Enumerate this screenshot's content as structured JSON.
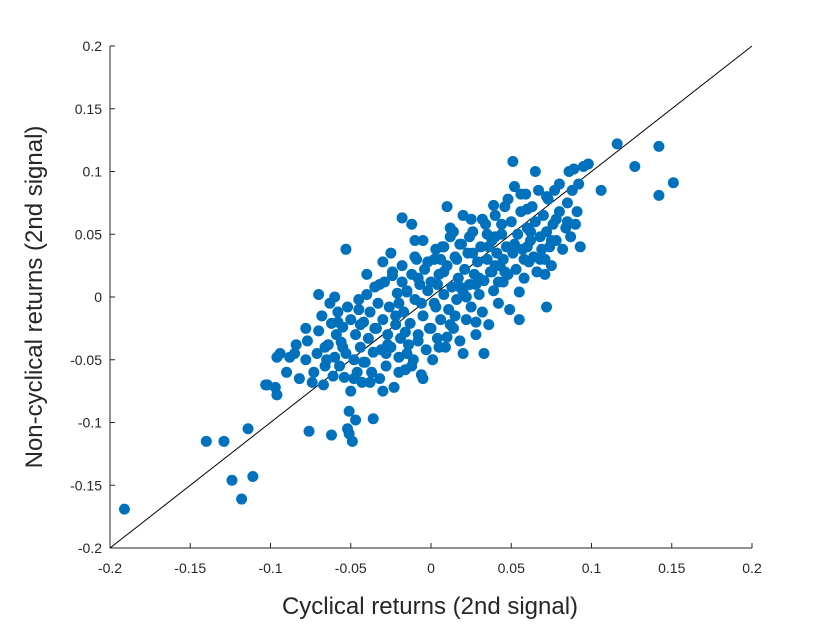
{
  "chart_data": {
    "type": "scatter",
    "xlabel": "Cyclical returns (2nd signal)",
    "ylabel": "Non-cyclical returns (2nd signal)",
    "xlim": [
      -0.2,
      0.2
    ],
    "ylim": [
      -0.2,
      0.2
    ],
    "xticks": [
      "-0.2",
      "-0.15",
      "-0.1",
      "-0.05",
      "0",
      "0.05",
      "0.1",
      "0.15",
      "0.2"
    ],
    "yticks": [
      "-0.2",
      "-0.15",
      "-0.1",
      "-0.05",
      "0",
      "0.05",
      "0.1",
      "0.15",
      "0.2"
    ],
    "reference_line": {
      "from": [
        -0.2,
        -0.2
      ],
      "to": [
        0.2,
        0.2
      ]
    },
    "marker_color": "#0072bd",
    "grid": false,
    "points": [
      [
        -0.191,
        -0.169
      ],
      [
        -0.14,
        -0.115
      ],
      [
        -0.129,
        -0.115
      ],
      [
        -0.124,
        -0.146
      ],
      [
        -0.118,
        -0.161
      ],
      [
        -0.114,
        -0.105
      ],
      [
        -0.111,
        -0.143
      ],
      [
        -0.103,
        -0.07
      ],
      [
        -0.097,
        -0.072
      ],
      [
        -0.096,
        -0.078
      ],
      [
        -0.096,
        -0.048
      ],
      [
        -0.094,
        -0.045
      ],
      [
        -0.088,
        -0.048
      ],
      [
        -0.084,
        -0.038
      ],
      [
        -0.082,
        -0.065
      ],
      [
        -0.078,
        -0.05
      ],
      [
        -0.077,
        -0.035
      ],
      [
        -0.076,
        -0.107
      ],
      [
        -0.073,
        -0.06
      ],
      [
        -0.071,
        -0.045
      ],
      [
        -0.07,
        -0.027
      ],
      [
        -0.068,
        -0.015
      ],
      [
        -0.067,
        -0.07
      ],
      [
        -0.066,
        -0.055
      ],
      [
        -0.064,
        -0.038
      ],
      [
        -0.063,
        -0.005
      ],
      [
        -0.062,
        -0.021
      ],
      [
        -0.061,
        -0.063
      ],
      [
        -0.06,
        -0.048
      ],
      [
        -0.059,
        -0.03
      ],
      [
        -0.058,
        -0.012
      ],
      [
        -0.057,
        -0.055
      ],
      [
        -0.056,
        -0.036
      ],
      [
        -0.055,
        -0.024
      ],
      [
        -0.054,
        -0.064
      ],
      [
        -0.053,
        -0.045
      ],
      [
        -0.052,
        -0.008
      ],
      [
        -0.052,
        -0.105
      ],
      [
        -0.051,
        -0.109
      ],
      [
        -0.051,
        -0.091
      ],
      [
        -0.05,
        -0.018
      ],
      [
        -0.049,
        -0.115
      ],
      [
        -0.048,
        -0.05
      ],
      [
        -0.047,
        -0.03
      ],
      [
        -0.046,
        -0.06
      ],
      [
        -0.045,
        -0.002
      ],
      [
        -0.044,
        -0.04
      ],
      [
        -0.043,
        -0.068
      ],
      [
        -0.042,
        -0.02
      ],
      [
        -0.041,
        -0.052
      ],
      [
        -0.04,
        0.002
      ],
      [
        -0.039,
        -0.033
      ],
      [
        -0.038,
        -0.012
      ],
      [
        -0.037,
        -0.06
      ],
      [
        -0.036,
        -0.044
      ],
      [
        -0.035,
        0.008
      ],
      [
        -0.034,
        -0.025
      ],
      [
        -0.033,
        -0.005
      ],
      [
        -0.032,
        -0.065
      ],
      [
        -0.031,
        -0.042
      ],
      [
        -0.03,
        -0.018
      ],
      [
        -0.029,
        0.012
      ],
      [
        -0.028,
        -0.055
      ],
      [
        -0.027,
        -0.03
      ],
      [
        -0.026,
        -0.008
      ],
      [
        -0.025,
        -0.04
      ],
      [
        -0.024,
        0.017
      ],
      [
        -0.023,
        -0.072
      ],
      [
        -0.022,
        -0.022
      ],
      [
        -0.021,
        0.003
      ],
      [
        -0.02,
        -0.048
      ],
      [
        -0.019,
        -0.033
      ],
      [
        -0.018,
        0.025
      ],
      [
        -0.017,
        -0.012
      ],
      [
        -0.016,
        -0.058
      ],
      [
        -0.015,
        0.004
      ],
      [
        -0.014,
        -0.038
      ],
      [
        -0.013,
        -0.021
      ],
      [
        -0.012,
        0.018
      ],
      [
        -0.011,
        -0.05
      ],
      [
        -0.01,
        -0.002
      ],
      [
        -0.009,
        0.03
      ],
      [
        -0.008,
        -0.03
      ],
      [
        -0.007,
        0.01
      ],
      [
        -0.006,
        -0.062
      ],
      [
        -0.005,
        -0.015
      ],
      [
        -0.004,
        0.022
      ],
      [
        -0.003,
        -0.042
      ],
      [
        -0.002,
        0.005
      ],
      [
        -0.001,
        -0.025
      ],
      [
        0.0,
        0.012
      ],
      [
        0.001,
        -0.05
      ],
      [
        0.002,
        0.03
      ],
      [
        0.003,
        -0.008
      ],
      [
        0.004,
        -0.033
      ],
      [
        0.005,
        0.018
      ],
      [
        0.006,
        -0.018
      ],
      [
        0.007,
        0.04
      ],
      [
        0.008,
        0.002
      ],
      [
        0.009,
        -0.04
      ],
      [
        0.01,
        0.025
      ],
      [
        0.011,
        -0.01
      ],
      [
        0.012,
        0.048
      ],
      [
        0.013,
        0.008
      ],
      [
        0.014,
        -0.025
      ],
      [
        0.015,
        0.032
      ],
      [
        0.016,
        -0.002
      ],
      [
        0.017,
        0.015
      ],
      [
        0.018,
        -0.035
      ],
      [
        0.019,
        0.042
      ],
      [
        0.02,
        0.004
      ],
      [
        0.021,
        0.022
      ],
      [
        0.022,
        -0.018
      ],
      [
        0.023,
        0.035
      ],
      [
        0.024,
        0.01
      ],
      [
        0.025,
        -0.008
      ],
      [
        0.026,
        0.052
      ],
      [
        0.027,
        0.018
      ],
      [
        0.028,
        -0.03
      ],
      [
        0.029,
        0.028
      ],
      [
        0.03,
        0.002
      ],
      [
        0.031,
        0.04
      ],
      [
        0.032,
        -0.012
      ],
      [
        0.033,
        0.013
      ],
      [
        0.034,
        0.058
      ],
      [
        0.035,
        0.03
      ],
      [
        0.036,
        -0.022
      ],
      [
        0.037,
        0.02
      ],
      [
        0.038,
        0.045
      ],
      [
        0.039,
        0.005
      ],
      [
        0.04,
        0.065
      ],
      [
        0.041,
        0.035
      ],
      [
        0.042,
        -0.005
      ],
      [
        0.043,
        0.025
      ],
      [
        0.044,
        0.05
      ],
      [
        0.045,
        0.012
      ],
      [
        0.046,
        0.072
      ],
      [
        0.047,
        0.04
      ],
      [
        0.048,
        0.018
      ],
      [
        0.049,
        -0.01
      ],
      [
        0.05,
        0.06
      ],
      [
        0.051,
        0.035
      ],
      [
        0.052,
        0.088
      ],
      [
        0.053,
        0.022
      ],
      [
        0.054,
        0.05
      ],
      [
        0.055,
        0.004
      ],
      [
        0.056,
        0.068
      ],
      [
        0.057,
        0.038
      ],
      [
        0.058,
        0.015
      ],
      [
        0.059,
        0.082
      ],
      [
        0.06,
        0.055
      ],
      [
        0.061,
        0.028
      ],
      [
        0.062,
        0.045
      ],
      [
        0.063,
        0.072
      ],
      [
        0.064,
        0.032
      ],
      [
        0.065,
        0.06
      ],
      [
        0.066,
        0.02
      ],
      [
        0.067,
        0.085
      ],
      [
        0.068,
        0.048
      ],
      [
        0.069,
        0.038
      ],
      [
        0.07,
        0.065
      ],
      [
        0.071,
        0.03
      ],
      [
        0.072,
        0.052
      ],
      [
        0.073,
        0.078
      ],
      [
        0.074,
        0.04
      ],
      [
        0.075,
        0.025
      ],
      [
        0.076,
        0.058
      ],
      [
        0.077,
        0.085
      ],
      [
        0.078,
        0.045
      ],
      [
        0.08,
        0.068
      ],
      [
        0.082,
        0.038
      ],
      [
        0.084,
        0.055
      ],
      [
        0.085,
        0.075
      ],
      [
        0.086,
        0.1
      ],
      [
        0.087,
        0.048
      ],
      [
        0.088,
        0.085
      ],
      [
        0.089,
        0.102
      ],
      [
        0.091,
        0.068
      ],
      [
        0.092,
        0.09
      ],
      [
        0.093,
        0.04
      ],
      [
        0.095,
        0.104
      ],
      [
        0.098,
        0.106
      ],
      [
        0.106,
        0.085
      ],
      [
        0.116,
        0.122
      ],
      [
        0.127,
        0.104
      ],
      [
        0.142,
        0.12
      ],
      [
        0.142,
        0.081
      ],
      [
        0.151,
        0.091
      ],
      [
        0.051,
        0.108
      ],
      [
        0.039,
        0.073
      ],
      [
        0.01,
        0.072
      ],
      [
        -0.018,
        0.063
      ],
      [
        -0.053,
        0.038
      ],
      [
        -0.012,
        0.058
      ],
      [
        0.02,
        0.065
      ],
      [
        -0.07,
        0.002
      ],
      [
        -0.06,
        0.0
      ],
      [
        -0.078,
        -0.025
      ],
      [
        -0.085,
        -0.045
      ],
      [
        -0.102,
        -0.07
      ],
      [
        -0.047,
        -0.098
      ],
      [
        -0.036,
        -0.097
      ],
      [
        -0.062,
        -0.11
      ],
      [
        0.033,
        -0.045
      ],
      [
        0.02,
        -0.045
      ],
      [
        -0.005,
        -0.065
      ],
      [
        0.055,
        -0.018
      ],
      [
        0.072,
        -0.008
      ],
      [
        0.071,
        0.018
      ],
      [
        0.056,
        0.082
      ],
      [
        0.045,
        0.03
      ],
      [
        0.003,
        0.038
      ],
      [
        -0.01,
        0.045
      ],
      [
        0.012,
        0.055
      ],
      [
        -0.03,
        0.028
      ],
      [
        -0.04,
        0.018
      ],
      [
        0.065,
        0.1
      ],
      [
        0.048,
        0.078
      ],
      [
        0.005,
        -0.04
      ],
      [
        -0.015,
        -0.045
      ],
      [
        0.025,
        0.062
      ],
      [
        0.038,
        0.02
      ],
      [
        -0.025,
        0.035
      ],
      [
        0.015,
        -0.015
      ],
      [
        -0.005,
        0.045
      ],
      [
        0.028,
        -0.02
      ],
      [
        -0.032,
        0.01
      ],
      [
        0.008,
        0.02
      ],
      [
        0.035,
        0.05
      ],
      [
        -0.02,
        -0.005
      ],
      [
        0.018,
        0.042
      ],
      [
        0.042,
        0.012
      ],
      [
        -0.008,
        0.015
      ],
      [
        0.06,
        0.07
      ],
      [
        0.085,
        0.06
      ],
      [
        0.08,
        0.09
      ],
      [
        0.078,
        0.062
      ],
      [
        -0.045,
        -0.01
      ],
      [
        -0.055,
        -0.04
      ],
      [
        -0.048,
        -0.065
      ],
      [
        -0.038,
        -0.068
      ],
      [
        -0.02,
        -0.06
      ],
      [
        -0.012,
        -0.055
      ],
      [
        0.0,
        -0.025
      ],
      [
        0.01,
        -0.032
      ],
      [
        0.002,
        -0.005
      ],
      [
        0.022,
        0.0
      ],
      [
        -0.015,
        0.005
      ],
      [
        0.03,
        0.015
      ],
      [
        0.04,
        0.025
      ],
      [
        0.052,
        0.042
      ],
      [
        0.062,
        0.052
      ],
      [
        -0.028,
        -0.045
      ],
      [
        -0.042,
        -0.052
      ],
      [
        -0.065,
        -0.05
      ],
      [
        -0.074,
        -0.068
      ],
      [
        -0.09,
        -0.06
      ],
      [
        0.018,
        0.008
      ],
      [
        0.026,
        0.035
      ],
      [
        0.032,
        0.062
      ],
      [
        0.014,
        0.052
      ],
      [
        0.006,
        0.03
      ],
      [
        -0.002,
        0.028
      ],
      [
        -0.018,
        0.012
      ],
      [
        -0.022,
        -0.015
      ],
      [
        -0.035,
        -0.025
      ],
      [
        -0.027,
        -0.038
      ],
      [
        -0.008,
        -0.035
      ],
      [
        0.012,
        -0.022
      ],
      [
        0.046,
        0.02
      ],
      [
        0.058,
        0.03
      ],
      [
        0.068,
        0.03
      ],
      [
        0.09,
        0.058
      ],
      [
        0.072,
        0.08
      ],
      [
        0.044,
        0.058
      ],
      [
        0.036,
        0.04
      ],
      [
        0.024,
        0.048
      ],
      [
        0.004,
        0.01
      ],
      [
        -0.006,
        -0.005
      ],
      [
        -0.016,
        -0.028
      ],
      [
        -0.044,
        -0.022
      ],
      [
        -0.058,
        -0.02
      ],
      [
        -0.066,
        -0.04
      ],
      [
        -0.05,
        -0.075
      ],
      [
        -0.03,
        -0.075
      ],
      [
        0.016,
        0.03
      ],
      [
        0.028,
        0.01
      ],
      [
        0.04,
        0.048
      ],
      [
        0.06,
        0.04
      ],
      [
        0.075,
        0.045
      ],
      [
        -0.01,
        0.032
      ],
      [
        -0.024,
        0.02
      ],
      [
        0.008,
        0.04
      ]
    ]
  }
}
